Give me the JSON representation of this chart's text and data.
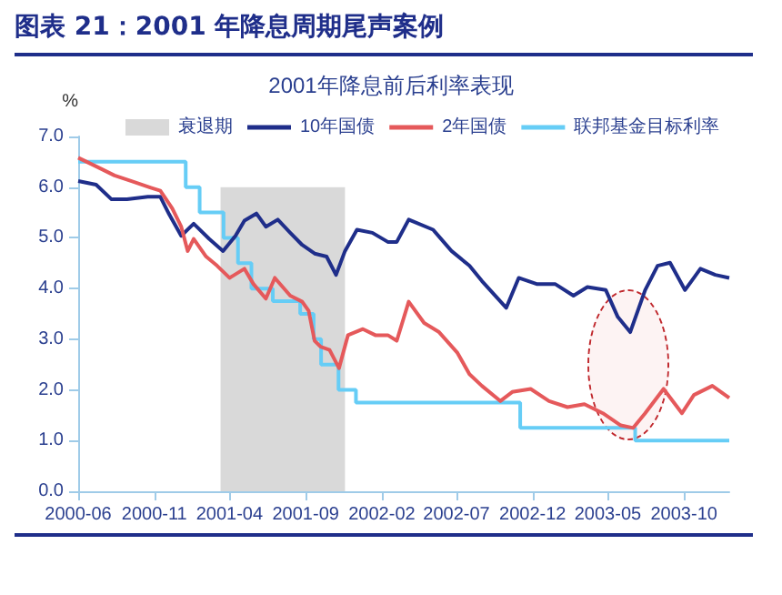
{
  "chart_data": {
    "type": "line",
    "title": "图表 21：2001 年降息周期尾声案例",
    "subtitle": "2001年降息前后利率表现",
    "ylabel": "%",
    "xlim": [
      "2000-06-01",
      "2003-12-31"
    ],
    "xticks": [
      "2000-06",
      "2000-11",
      "2001-04",
      "2001-09",
      "2002-02",
      "2002-07",
      "2002-12",
      "2003-05",
      "2003-10"
    ],
    "ylim": [
      0,
      7
    ],
    "yticks": [
      {
        "value": 0,
        "label": "0.0"
      },
      {
        "value": 1,
        "label": "1.0"
      },
      {
        "value": 2,
        "label": "2.0"
      },
      {
        "value": 3,
        "label": "3.0"
      },
      {
        "value": 4,
        "label": "4.0"
      },
      {
        "value": 5,
        "label": "5.0"
      },
      {
        "value": 6,
        "label": "6.0"
      },
      {
        "value": 7,
        "label": "7.0"
      }
    ],
    "grid": false,
    "legend": "top",
    "marker": "none",
    "line_style": "solid",
    "series": [
      {
        "name": "衰退期",
        "type": "area",
        "color": "#d9d9d9",
        "x": [
          "2001-03-14",
          "2001-11-19"
        ],
        "values": [
          6.0,
          6.0
        ]
      },
      {
        "name": "10年国债",
        "color": "#1f2e8a",
        "x": [
          "2000-06-01",
          "2000-07-07",
          "2000-08-07",
          "2000-09-07",
          "2000-10-19",
          "2000-11-13",
          "2000-12-01",
          "2000-12-25",
          "2001-01-19",
          "2001-02-19",
          "2001-03-19",
          "2001-04-13",
          "2001-05-01",
          "2001-05-25",
          "2001-06-13",
          "2001-07-07",
          "2001-08-01",
          "2001-08-25",
          "2001-09-19",
          "2001-10-13",
          "2001-11-01",
          "2001-11-19",
          "2001-12-13",
          "2002-01-13",
          "2002-02-13",
          "2002-03-03",
          "2002-03-27",
          "2002-05-15",
          "2002-06-21",
          "2002-07-27",
          "2002-08-21",
          "2002-10-09",
          "2002-11-03",
          "2002-12-09",
          "2003-01-15",
          "2003-02-21",
          "2003-03-21",
          "2003-04-27",
          "2003-05-21",
          "2003-06-15",
          "2003-07-15",
          "2003-08-09",
          "2003-09-03",
          "2003-10-03",
          "2003-11-03",
          "2003-12-03",
          "2003-12-31"
        ],
        "values": [
          6.12,
          6.05,
          5.76,
          5.76,
          5.81,
          5.81,
          5.46,
          5.04,
          5.28,
          4.98,
          4.74,
          5.04,
          5.34,
          5.48,
          5.22,
          5.36,
          5.1,
          4.86,
          4.69,
          4.63,
          4.27,
          4.74,
          5.16,
          5.1,
          4.92,
          4.92,
          5.36,
          5.16,
          4.74,
          4.45,
          4.15,
          3.62,
          4.21,
          4.09,
          4.09,
          3.86,
          4.03,
          3.97,
          3.44,
          3.14,
          3.97,
          4.45,
          4.51,
          3.97,
          4.39,
          4.27,
          4.21
        ]
      },
      {
        "name": "2年国债",
        "color": "#e5595b",
        "x": [
          "2000-06-01",
          "2000-07-07",
          "2000-08-13",
          "2000-09-19",
          "2000-10-25",
          "2000-11-13",
          "2000-12-07",
          "2000-12-25",
          "2001-01-07",
          "2001-01-19",
          "2001-02-13",
          "2001-03-07",
          "2001-04-01",
          "2001-05-01",
          "2001-05-19",
          "2001-06-13",
          "2001-07-01",
          "2001-08-01",
          "2001-08-25",
          "2001-09-07",
          "2001-09-19",
          "2001-10-01",
          "2001-10-19",
          "2001-11-07",
          "2001-11-25",
          "2001-12-25",
          "2002-01-19",
          "2002-02-13",
          "2002-03-03",
          "2002-03-27",
          "2002-04-27",
          "2002-05-27",
          "2002-07-03",
          "2002-07-27",
          "2002-08-21",
          "2002-09-27",
          "2002-10-21",
          "2002-11-27",
          "2003-01-03",
          "2003-02-09",
          "2003-03-15",
          "2003-04-21",
          "2003-05-27",
          "2003-06-21",
          "2003-07-15",
          "2003-08-21",
          "2003-09-27",
          "2003-10-21",
          "2003-11-27",
          "2003-12-31"
        ],
        "values": [
          6.58,
          6.41,
          6.23,
          6.11,
          5.99,
          5.93,
          5.58,
          5.22,
          4.74,
          4.98,
          4.63,
          4.45,
          4.21,
          4.39,
          4.09,
          3.8,
          4.21,
          3.86,
          3.74,
          3.56,
          2.97,
          2.85,
          2.79,
          2.43,
          3.08,
          3.2,
          3.08,
          3.08,
          2.97,
          3.74,
          3.32,
          3.14,
          2.73,
          2.31,
          2.08,
          1.78,
          1.96,
          2.02,
          1.78,
          1.66,
          1.72,
          1.54,
          1.3,
          1.25,
          1.54,
          2.02,
          1.54,
          1.9,
          2.08,
          1.84
        ]
      },
      {
        "name": "联邦基金目标利率",
        "type": "step",
        "color": "#66cdf6",
        "x": [
          "2000-06-01",
          "2001-01-03",
          "2001-01-31",
          "2001-03-20",
          "2001-04-18",
          "2001-05-15",
          "2001-06-27",
          "2001-08-21",
          "2001-09-17",
          "2001-10-02",
          "2001-11-06",
          "2001-12-11",
          "2002-11-06",
          "2003-06-25",
          "2003-12-31"
        ],
        "values": [
          6.5,
          6.0,
          5.5,
          5.0,
          4.5,
          4.0,
          3.75,
          3.5,
          3.0,
          2.5,
          2.0,
          1.75,
          1.25,
          1.0,
          1.0
        ]
      }
    ]
  }
}
